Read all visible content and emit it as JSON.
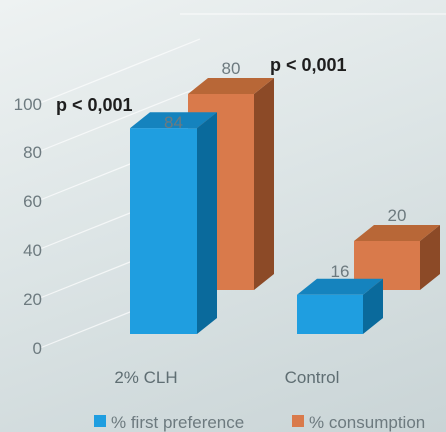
{
  "chart_data": {
    "type": "bar",
    "categories": [
      "2% CLH",
      "Control"
    ],
    "series": [
      {
        "name": "% first preference",
        "values": [
          84,
          16
        ],
        "color": "#1f9ee0"
      },
      {
        "name": "% consumption",
        "values": [
          80,
          20
        ],
        "color": "#d97a4b"
      }
    ],
    "ylim": [
      0,
      100
    ],
    "yticks": [
      0,
      20,
      40,
      60,
      80,
      100
    ],
    "annotations": [
      "p < 0,001",
      "p < 0,001"
    ],
    "legend": "bottom",
    "grid": true,
    "projection": "3d"
  }
}
